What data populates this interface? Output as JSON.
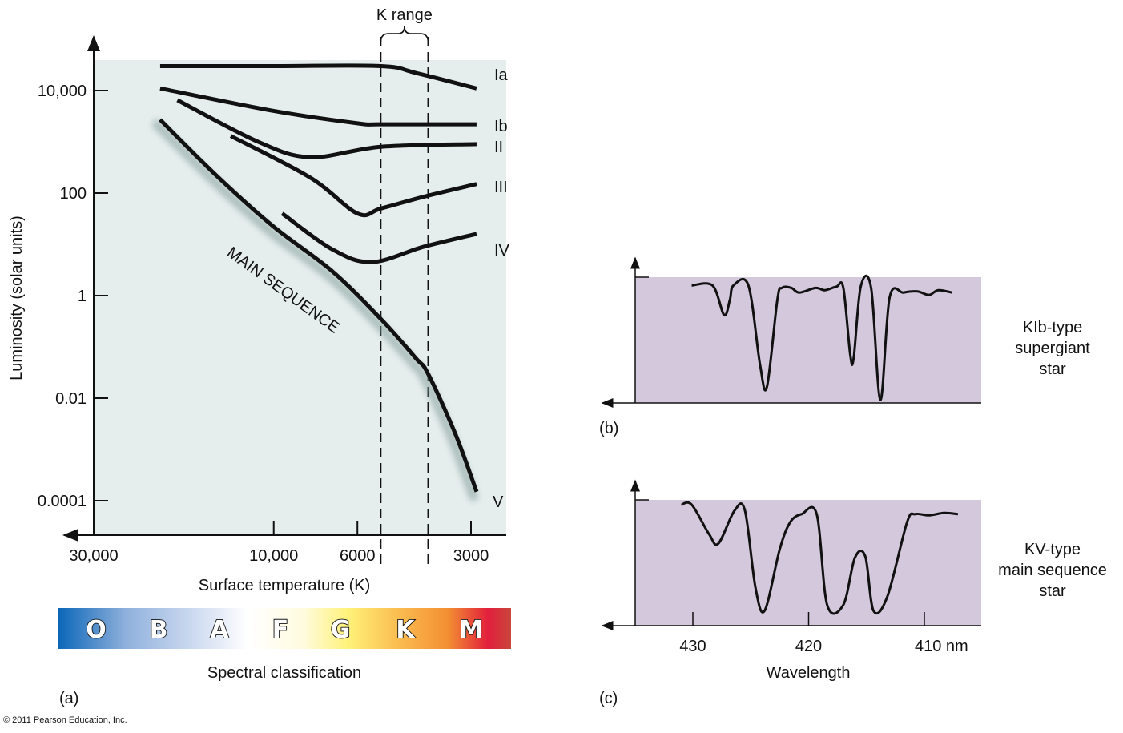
{
  "figure": {
    "copyright": "© 2011 Pearson Education, Inc.",
    "panel_labels": {
      "a": "(a)",
      "b": "(b)",
      "c": "(c)"
    }
  },
  "chart_data": [
    {
      "id": "hr-diagram",
      "type": "line",
      "title": "",
      "xlabel": "Surface temperature (K)",
      "ylabel": "Luminosity (solar units)",
      "x_scale": "log-reversed",
      "y_scale": "log",
      "x_ticks": [
        {
          "value": 30000,
          "label": "30,000"
        },
        {
          "value": 10000,
          "label": "10,000"
        },
        {
          "value": 6000,
          "label": "6000"
        },
        {
          "value": 3000,
          "label": "3000"
        }
      ],
      "y_ticks": [
        {
          "value": 10000,
          "label": "10,000"
        },
        {
          "value": 100,
          "label": "100"
        },
        {
          "value": 1,
          "label": "1"
        },
        {
          "value": 0.01,
          "label": "0.01"
        },
        {
          "value": 0.0001,
          "label": "0.0001"
        }
      ],
      "annotation": {
        "label": "K range",
        "x_range": [
          5200,
          3900
        ]
      },
      "series": [
        {
          "name": "Ia",
          "points": [
            [
              20000,
              30000
            ],
            [
              10000,
              30000
            ],
            [
              5200,
              30000
            ],
            [
              4200,
              22000
            ],
            [
              2900,
              11000
            ]
          ]
        },
        {
          "name": "Ib",
          "points": [
            [
              20000,
              11000
            ],
            [
              10000,
              4000
            ],
            [
              6000,
              2300
            ],
            [
              5200,
              2200
            ],
            [
              2900,
              2200
            ]
          ]
        },
        {
          "name": "II",
          "points": [
            [
              18000,
              6500
            ],
            [
              11000,
              1000
            ],
            [
              8000,
              500
            ],
            [
              5200,
              800
            ],
            [
              2900,
              900
            ]
          ]
        },
        {
          "name": "III",
          "points": [
            [
              13000,
              1300
            ],
            [
              8000,
              200
            ],
            [
              6000,
              40
            ],
            [
              5200,
              50
            ],
            [
              4000,
              85
            ],
            [
              2900,
              150
            ]
          ]
        },
        {
          "name": "IV",
          "points": [
            [
              9500,
              40
            ],
            [
              7000,
              8
            ],
            [
              5500,
              4.5
            ],
            [
              4000,
              9
            ],
            [
              2900,
              16
            ]
          ]
        },
        {
          "name": "V",
          "label": "MAIN SEQUENCE",
          "points": [
            [
              20000,
              2700
            ],
            [
              14000,
              200
            ],
            [
              10000,
              22
            ],
            [
              7000,
              3
            ],
            [
              5200,
              0.35
            ],
            [
              4200,
              0.06
            ],
            [
              3900,
              0.03
            ],
            [
              3300,
              0.002
            ],
            [
              2900,
              0.00015
            ]
          ]
        }
      ]
    },
    {
      "id": "spectral-classification",
      "type": "heatmap",
      "xlabel": "Spectral classification",
      "categories": [
        "O",
        "B",
        "A",
        "F",
        "G",
        "K",
        "M"
      ],
      "colors": [
        "#0a66b8",
        "#a7bfe2",
        "#eef2fa",
        "#ffffff",
        "#fff27a",
        "#f6a24a",
        "#e21f3c"
      ]
    },
    {
      "id": "klb-spectrum",
      "type": "line",
      "description": "KIb-type supergiant star",
      "xlabel": "",
      "x_range": [
        435,
        405
      ],
      "y_range": [
        0,
        1
      ],
      "points": [
        [
          430.1,
          0.97
        ],
        [
          428.3,
          0.97
        ],
        [
          427.3,
          0.72
        ],
        [
          426.8,
          0.85
        ],
        [
          426.5,
          0.97
        ],
        [
          425.2,
          0.97
        ],
        [
          424.2,
          0.3
        ],
        [
          423.6,
          0.11
        ],
        [
          422.7,
          0.85
        ],
        [
          422.3,
          0.95
        ],
        [
          421.5,
          0.95
        ],
        [
          420.8,
          0.91
        ],
        [
          419.4,
          0.95
        ],
        [
          418.6,
          0.93
        ],
        [
          417.6,
          0.96
        ],
        [
          417.0,
          0.95
        ],
        [
          416.4,
          0.38
        ],
        [
          416.1,
          0.36
        ],
        [
          415.5,
          0.96
        ],
        [
          414.6,
          0.95
        ],
        [
          413.8,
          0.0
        ],
        [
          413.0,
          0.87
        ],
        [
          411.8,
          0.91
        ],
        [
          410.6,
          0.92
        ],
        [
          409.6,
          0.89
        ],
        [
          408.8,
          0.93
        ],
        [
          407.6,
          0.91
        ]
      ]
    },
    {
      "id": "kv-spectrum",
      "type": "line",
      "description": "KV-type main sequence star",
      "xlabel": "Wavelength",
      "x_range": [
        435,
        405
      ],
      "y_range": [
        0,
        1
      ],
      "x_ticks": [
        {
          "value": 430,
          "label": "430"
        },
        {
          "value": 420,
          "label": "420"
        },
        {
          "value": 410,
          "label": "410 nm"
        }
      ],
      "points": [
        [
          431.0,
          1.0
        ],
        [
          430.1,
          1.0
        ],
        [
          428.6,
          0.75
        ],
        [
          427.8,
          0.67
        ],
        [
          426.4,
          0.95
        ],
        [
          425.5,
          0.95
        ],
        [
          424.6,
          0.3
        ],
        [
          423.8,
          0.1
        ],
        [
          422.5,
          0.62
        ],
        [
          421.6,
          0.85
        ],
        [
          420.6,
          0.92
        ],
        [
          419.3,
          0.92
        ],
        [
          418.4,
          0.15
        ],
        [
          417.0,
          0.15
        ],
        [
          416.0,
          0.55
        ],
        [
          415.1,
          0.56
        ],
        [
          414.4,
          0.1
        ],
        [
          413.2,
          0.22
        ],
        [
          411.5,
          0.85
        ],
        [
          410.8,
          0.92
        ],
        [
          409.6,
          0.91
        ],
        [
          408.3,
          0.93
        ],
        [
          407.1,
          0.92
        ]
      ]
    }
  ]
}
